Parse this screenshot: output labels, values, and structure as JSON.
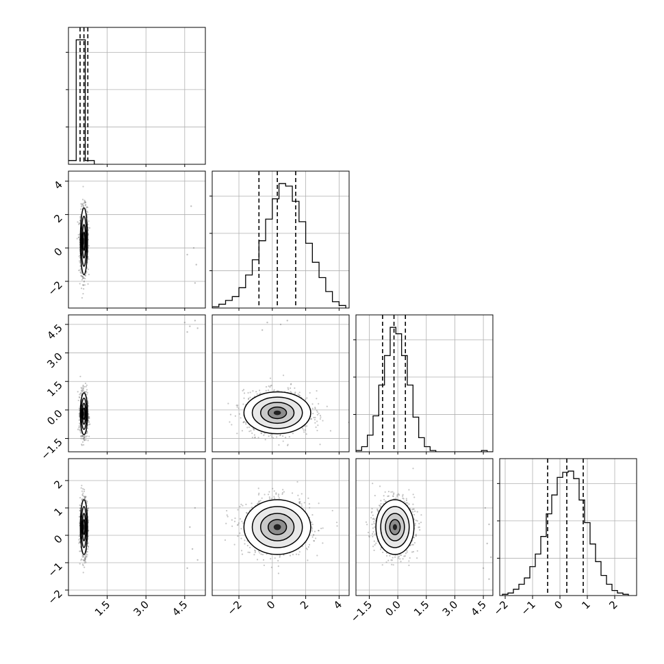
{
  "chart_data": {
    "type": "corner",
    "title": "",
    "n_params": 4,
    "grid": true,
    "colors": {
      "line": "#000000",
      "grid": "#b0b0b0",
      "density_dark": "#000000",
      "density_light": "#ffffff",
      "scatter": "#7f7f7f"
    },
    "params": [
      {
        "index": 0,
        "label": "",
        "range": [
          0.0,
          5.3
        ],
        "ticks": [
          1.5,
          3.0,
          4.5
        ],
        "tick_labels": [
          "1.5",
          "3.0",
          "4.5"
        ],
        "quantiles": [
          0.45,
          0.6,
          0.75
        ]
      },
      {
        "index": 1,
        "label": "",
        "range": [
          -3.6,
          4.6
        ],
        "ticks": [
          -2,
          0,
          2,
          4
        ],
        "tick_labels": [
          "−2",
          "0",
          "2",
          "4"
        ],
        "quantiles": [
          -0.8,
          0.3,
          1.4
        ]
      },
      {
        "index": 2,
        "label": "",
        "range": [
          -2.2,
          5.0
        ],
        "ticks": [
          -1.5,
          0.0,
          1.5,
          3.0,
          4.5
        ],
        "tick_labels": [
          "−1.5",
          "0.0",
          "1.5",
          "3.0",
          "4.5"
        ],
        "quantiles": [
          -0.8,
          -0.2,
          0.4
        ]
      },
      {
        "index": 3,
        "label": "",
        "range": [
          -2.2,
          2.8
        ],
        "ticks": [
          -2,
          -1,
          0,
          1,
          2
        ],
        "tick_labels": [
          "−2",
          "−1",
          "0",
          "1",
          "2"
        ],
        "quantiles": [
          -0.45,
          0.25,
          0.85
        ]
      }
    ],
    "histograms": [
      {
        "param": 0,
        "bin_edges": [
          -0.05,
          0.3,
          0.65,
          1.0,
          1.35
        ],
        "counts": [
          0.03,
          1.0,
          0.03,
          0.0
        ]
      },
      {
        "param": 1,
        "bin_edges": [
          -3.6,
          -3.2,
          -2.8,
          -2.4,
          -2.0,
          -1.6,
          -1.2,
          -0.8,
          -0.4,
          0.0,
          0.4,
          0.8,
          1.2,
          1.6,
          2.0,
          2.4,
          2.8,
          3.2,
          3.6,
          4.0,
          4.4
        ],
        "counts": [
          0.01,
          0.03,
          0.06,
          0.09,
          0.16,
          0.26,
          0.38,
          0.53,
          0.7,
          0.86,
          0.98,
          0.96,
          0.84,
          0.68,
          0.51,
          0.36,
          0.24,
          0.13,
          0.05,
          0.02
        ]
      },
      {
        "param": 2,
        "bin_edges": [
          -2.2,
          -1.9,
          -1.6,
          -1.3,
          -1.0,
          -0.7,
          -0.4,
          -0.1,
          0.2,
          0.5,
          0.8,
          1.1,
          1.4,
          1.7,
          2.0,
          2.3,
          2.6,
          2.9,
          3.2,
          3.5,
          3.8,
          4.1,
          4.4,
          4.7,
          5.0
        ],
        "counts": [
          0.01,
          0.04,
          0.13,
          0.28,
          0.52,
          0.75,
          0.97,
          0.92,
          0.75,
          0.52,
          0.27,
          0.11,
          0.04,
          0.01,
          0.0,
          0.0,
          0.0,
          0.0,
          0.0,
          0.0,
          0.0,
          0.0,
          0.01,
          0.0
        ]
      },
      {
        "param": 3,
        "bin_edges": [
          -2.1,
          -1.9,
          -1.7,
          -1.5,
          -1.3,
          -1.1,
          -0.9,
          -0.7,
          -0.5,
          -0.3,
          -0.1,
          0.1,
          0.3,
          0.5,
          0.7,
          0.9,
          1.1,
          1.3,
          1.5,
          1.7,
          1.9,
          2.1,
          2.3,
          2.5
        ],
        "counts": [
          0.01,
          0.02,
          0.05,
          0.09,
          0.14,
          0.23,
          0.33,
          0.47,
          0.65,
          0.8,
          0.94,
          0.98,
          0.99,
          0.93,
          0.76,
          0.58,
          0.41,
          0.27,
          0.16,
          0.09,
          0.04,
          0.02,
          0.01
        ]
      }
    ],
    "pairs": [
      {
        "x": 0,
        "y": 1,
        "center": [
          0.6,
          0.4
        ],
        "sigma": [
          0.07,
          1.0
        ],
        "outliers": [
          [
            4.75,
            2.5
          ],
          [
            4.85,
            0.0
          ],
          [
            4.6,
            -0.4
          ],
          [
            4.95,
            -1.0
          ],
          [
            4.9,
            -2.1
          ]
        ]
      },
      {
        "x": 0,
        "y": 2,
        "center": [
          0.6,
          -0.2
        ],
        "sigma": [
          0.07,
          0.55
        ],
        "outliers": [
          [
            4.5,
            4.6
          ],
          [
            4.7,
            4.4
          ],
          [
            4.9,
            4.7
          ],
          [
            4.6,
            4.1
          ],
          [
            5.0,
            4.3
          ]
        ]
      },
      {
        "x": 1,
        "y": 2,
        "center": [
          0.3,
          -0.15
        ],
        "sigma": [
          1.0,
          0.55
        ],
        "outliers": [
          [
            -0.3,
            4.6
          ],
          [
            0.5,
            4.5
          ],
          [
            0.9,
            4.7
          ],
          [
            -0.6,
            4.2
          ]
        ]
      },
      {
        "x": 0,
        "y": 3,
        "center": [
          0.6,
          0.3
        ],
        "sigma": [
          0.07,
          0.5
        ],
        "outliers": [
          [
            4.9,
            1.0
          ],
          [
            4.7,
            0.3
          ],
          [
            4.8,
            -0.5
          ],
          [
            5.0,
            -0.9
          ],
          [
            4.6,
            -1.2
          ]
        ]
      },
      {
        "x": 1,
        "y": 3,
        "center": [
          0.3,
          0.3
        ],
        "sigma": [
          1.0,
          0.5
        ],
        "outliers": []
      },
      {
        "x": 2,
        "y": 3,
        "center": [
          -0.15,
          0.3
        ],
        "sigma": [
          0.5,
          0.5
        ],
        "outliers": [
          [
            4.6,
            1.0
          ],
          [
            4.8,
            0.4
          ],
          [
            4.7,
            -0.3
          ],
          [
            4.9,
            -0.8
          ],
          [
            4.5,
            -1.2
          ],
          [
            4.8,
            -1.6
          ]
        ]
      }
    ]
  }
}
